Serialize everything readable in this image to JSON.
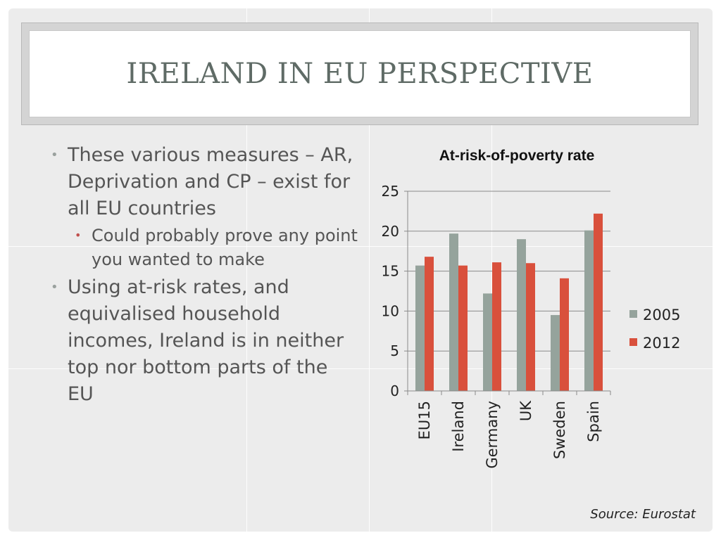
{
  "slide": {
    "title": "IRELAND IN EU PERSPECTIVE",
    "bullets": [
      {
        "text": "These various measures – AR, Deprivation and CP – exist for all EU countries",
        "sub": [
          "Could probably prove any point you wanted to make"
        ]
      },
      {
        "text": "Using at-risk rates, and equivalised household incomes, Ireland is in neither top nor bottom parts of the EU",
        "sub": []
      }
    ],
    "bullet_glyph": "•",
    "source": "Source: Eurostat"
  },
  "colors": {
    "series_2005": "#95a39c",
    "series_2012": "#d9503c",
    "title": "#5f6b66",
    "text": "#555555"
  },
  "chart_data": {
    "type": "bar",
    "title": "At-risk-of-poverty rate",
    "categories": [
      "EU15",
      "Ireland",
      "Germany",
      "UK",
      "Sweden",
      "Spain"
    ],
    "series": [
      {
        "name": "2005",
        "values": [
          15.7,
          19.7,
          12.2,
          19.0,
          9.5,
          20.1
        ]
      },
      {
        "name": "2012",
        "values": [
          16.8,
          15.7,
          16.1,
          16.0,
          14.1,
          22.2
        ]
      }
    ],
    "xlabel": "",
    "ylabel": "",
    "ylim": [
      0,
      25
    ],
    "yticks": [
      0,
      5,
      10,
      15,
      20,
      25
    ],
    "grid": true,
    "legend": "right"
  }
}
